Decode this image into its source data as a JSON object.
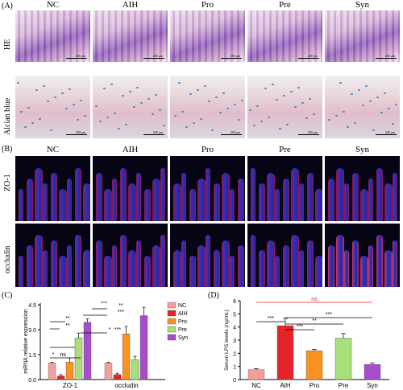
{
  "panels": {
    "A": {
      "label": "(A)",
      "columns": [
        "NC",
        "AIH",
        "Pro",
        "Pre",
        "Syn"
      ],
      "rows": [
        "HE",
        "Alcian blue"
      ],
      "scale_bar": "200 μm"
    },
    "B": {
      "label": "(B)",
      "columns": [
        "NC",
        "AIH",
        "Pro",
        "Pre",
        "Syn"
      ],
      "rows": [
        "ZO-1",
        "occludin"
      ]
    },
    "C": {
      "label": "(C)"
    },
    "D": {
      "label": "(D)"
    }
  },
  "colors": {
    "NC": "#f4a09a",
    "AIH": "#e5232a",
    "Pro": "#f7931e",
    "Pre": "#a8e07a",
    "Syn": "#a64dcb",
    "ns": "#e5232a"
  },
  "chart_data": [
    {
      "type": "bar",
      "panel": "C",
      "ylabel": "mRNA relative expression",
      "categories": [
        "ZO-1",
        "occludin"
      ],
      "yticks": [
        "0.0",
        "1.5",
        "3.0",
        "4.5"
      ],
      "ylim": [
        0,
        4.6
      ],
      "legend": [
        "NC",
        "AIH",
        "Pro",
        "Pre",
        "Syn"
      ],
      "legend_position": "right",
      "series": [
        {
          "name": "NC",
          "values": [
            1.0,
            1.0
          ],
          "err": [
            0.05,
            0.05
          ]
        },
        {
          "name": "AIH",
          "values": [
            0.22,
            0.3
          ],
          "err": [
            0.08,
            0.08
          ]
        },
        {
          "name": "Pro",
          "values": [
            1.05,
            2.75
          ],
          "err": [
            0.25,
            0.45
          ]
        },
        {
          "name": "Pre",
          "values": [
            2.5,
            1.2
          ],
          "err": [
            0.3,
            0.2
          ]
        },
        {
          "name": "Syn",
          "values": [
            3.45,
            3.85
          ],
          "err": [
            0.2,
            0.5
          ]
        }
      ],
      "annotations": [
        "*",
        "ns",
        "**",
        "**",
        "*",
        "***",
        "**",
        "***"
      ]
    },
    {
      "type": "bar",
      "panel": "D",
      "ylabel": "Serum LPS levels (ng/mL)",
      "categories": [
        "NC",
        "AIH",
        "Pro",
        "Pre",
        "Syn"
      ],
      "values": [
        0.75,
        4.1,
        2.2,
        3.15,
        1.15
      ],
      "err": [
        0.08,
        0.55,
        0.1,
        0.35,
        0.12
      ],
      "yticks": [
        "0",
        "1",
        "2",
        "3",
        "4",
        "5",
        "6"
      ],
      "ylim": [
        0,
        6
      ],
      "annotations": [
        "ns",
        "***",
        "***",
        "**",
        "***"
      ]
    }
  ]
}
